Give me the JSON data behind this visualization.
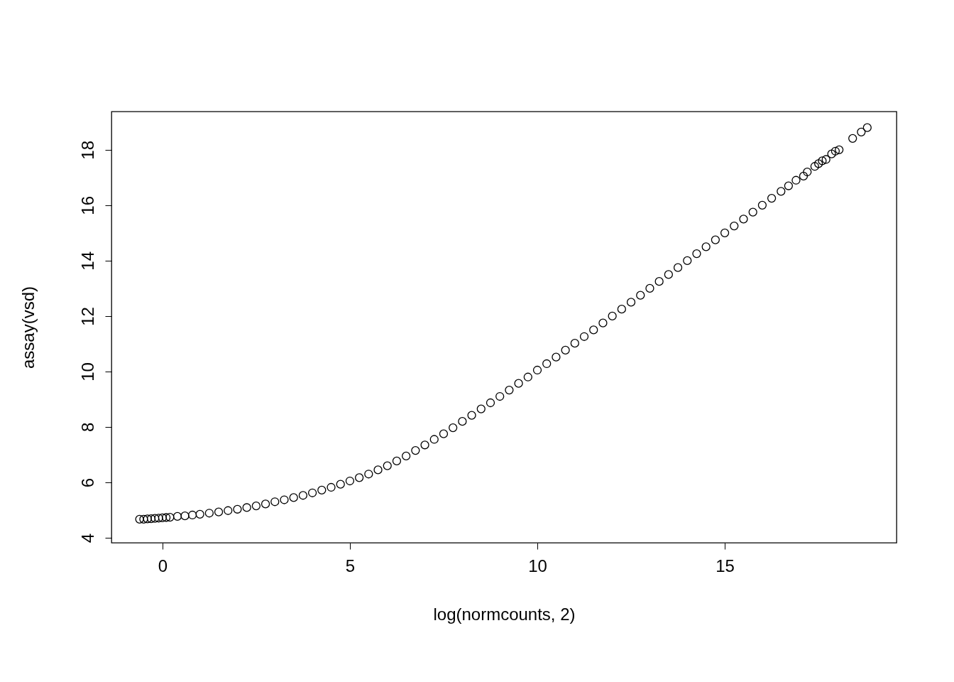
{
  "chart_data": {
    "type": "scatter",
    "xlabel": "log(normcounts, 2)",
    "ylabel": "assay(vsd)",
    "x": [
      -0.61,
      -0.5,
      -0.4,
      -0.3,
      -0.2,
      -0.1,
      0,
      0.1,
      0.2,
      0.4,
      0.6,
      0.8,
      1,
      1.25,
      1.5,
      1.75,
      2,
      2.25,
      2.5,
      2.75,
      3,
      3.25,
      3.5,
      3.75,
      4,
      4.25,
      4.5,
      4.75,
      5,
      5.25,
      5.5,
      5.75,
      6,
      6.25,
      6.5,
      6.75,
      7,
      7.25,
      7.5,
      7.75,
      8,
      8.25,
      8.5,
      8.75,
      9,
      9.25,
      9.5,
      9.75,
      10,
      10.25,
      10.5,
      10.75,
      11,
      11.25,
      11.5,
      11.75,
      12,
      12.25,
      12.5,
      12.75,
      13,
      13.25,
      13.5,
      13.75,
      14,
      14.25,
      14.5,
      14.75,
      15,
      15.25,
      15.5,
      15.75,
      16,
      16.25,
      16.5,
      16.7,
      16.9,
      17.1,
      17.2,
      17.4,
      17.5,
      17.6,
      17.7,
      17.85,
      17.95,
      18.05,
      18.41,
      18.64,
      18.8
    ],
    "values": [
      4.67,
      4.67,
      4.68,
      4.69,
      4.7,
      4.71,
      4.72,
      4.73,
      4.74,
      4.77,
      4.79,
      4.82,
      4.85,
      4.89,
      4.93,
      4.98,
      5.03,
      5.09,
      5.15,
      5.22,
      5.3,
      5.37,
      5.45,
      5.53,
      5.62,
      5.72,
      5.82,
      5.93,
      6.05,
      6.17,
      6.3,
      6.45,
      6.6,
      6.77,
      6.95,
      7.15,
      7.35,
      7.55,
      7.75,
      7.97,
      8.2,
      8.42,
      8.65,
      8.87,
      9.1,
      9.33,
      9.57,
      9.8,
      10.05,
      10.28,
      10.52,
      10.77,
      11.02,
      11.26,
      11.5,
      11.75,
      12.0,
      12.25,
      12.5,
      12.75,
      13.0,
      13.25,
      13.5,
      13.75,
      14.0,
      14.25,
      14.5,
      14.75,
      15.0,
      15.25,
      15.5,
      15.75,
      16.0,
      16.25,
      16.5,
      16.7,
      16.9,
      17.05,
      17.2,
      17.4,
      17.5,
      17.6,
      17.65,
      17.85,
      17.95,
      18.0,
      18.41,
      18.64,
      18.8
    ],
    "color": "#000000",
    "marker": "circle",
    "xlim": [
      -1.36,
      19.58
    ],
    "ylim": [
      3.82,
      19.38
    ],
    "xticks": [
      0,
      5,
      10,
      15
    ],
    "yticks": [
      4,
      6,
      8,
      10,
      12,
      14,
      16,
      18
    ],
    "grid": false
  }
}
